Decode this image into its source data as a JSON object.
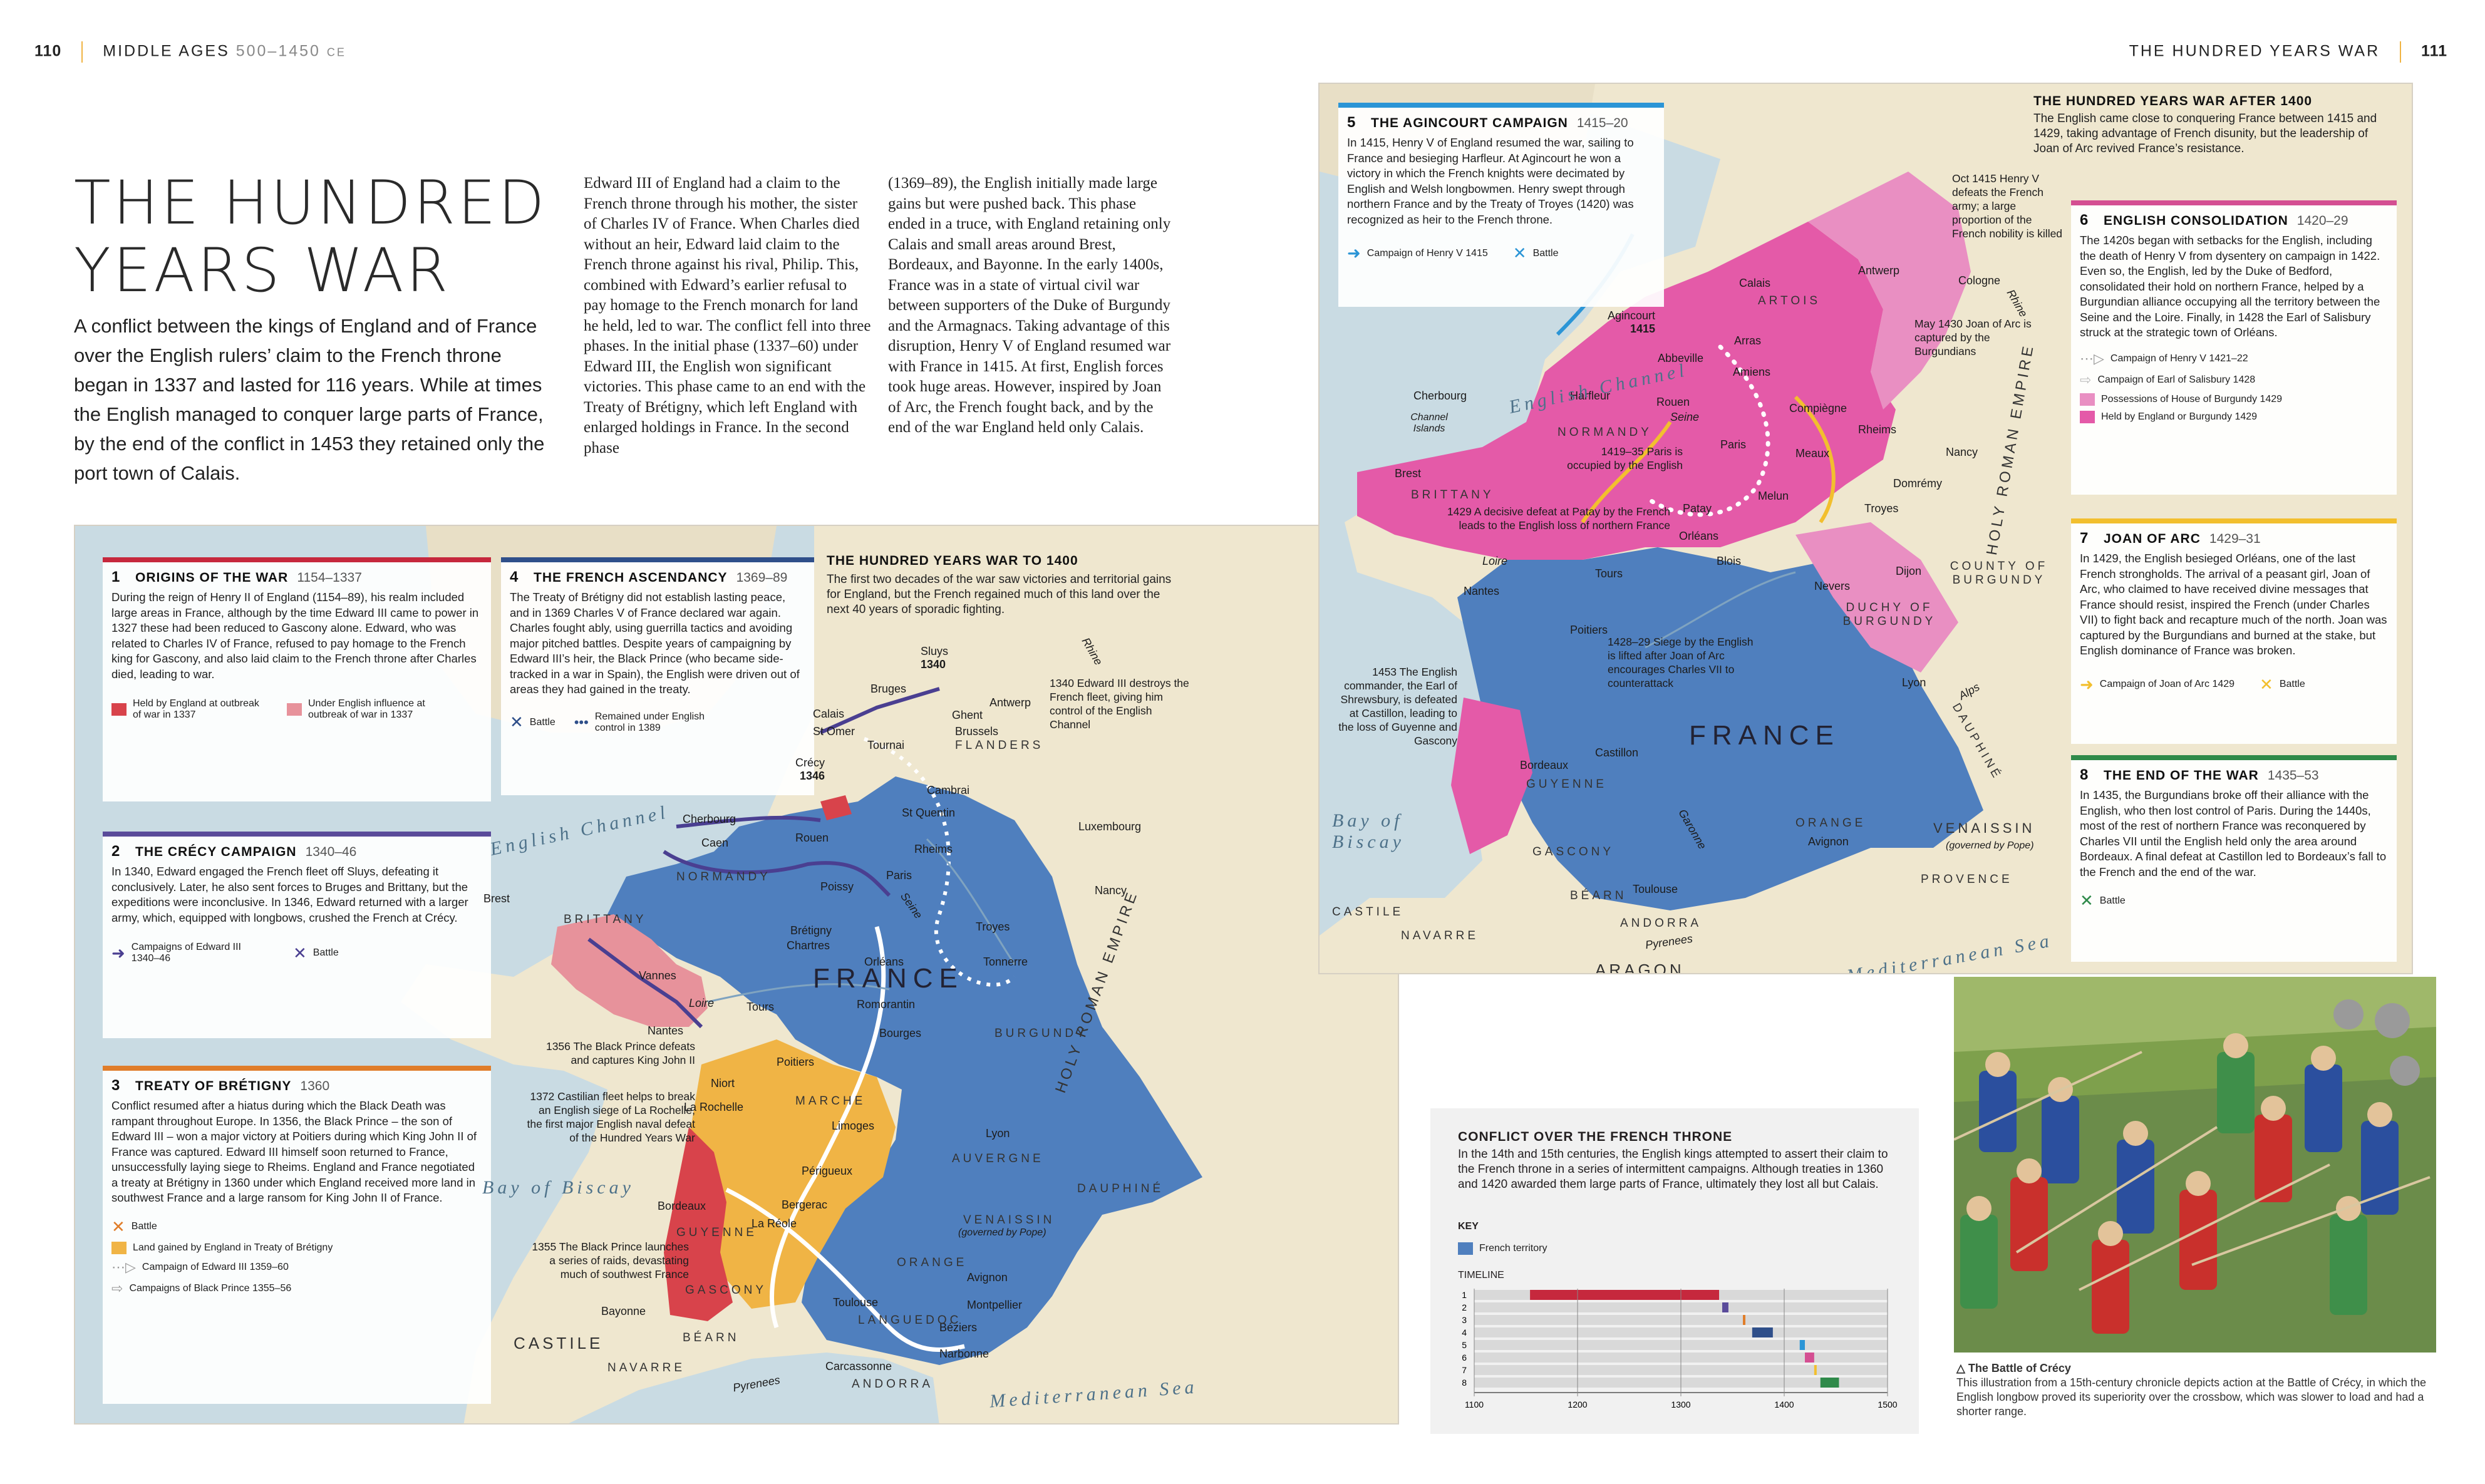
{
  "header": {
    "left_page_number": "110",
    "left_section": "MIDDLE AGES",
    "left_dates": "500–1450",
    "left_era": "CE",
    "right_section": "THE HUNDRED YEARS WAR",
    "right_page_number": "111"
  },
  "title_line1": "THE HUNDRED",
  "title_line2": "YEARS WAR",
  "intro": "A conflict between the kings of England and of France over the English rulers’ claim to the French throne began in 1337 and lasted for 116 years. While at times the English managed to conquer large parts of France, by the end of the conflict in 1453 they retained only the port town of Calais.",
  "body_col1": "Edward III of England had a claim to the French throne through his mother, the sister of Charles IV of France. When Charles died without an heir, Edward laid claim to the French throne against his rival, Philip. This, combined with Edward’s earlier refusal to pay homage to the French monarch for land he held, led to war. The conflict fell into three phases. In the initial phase (1337–60) under Edward III, the English won significant victories. This phase came to an end with the Treaty of Brétigny, which left England with enlarged holdings in France. In the second phase",
  "body_col2": "(1369–89), the English initially made large gains but were pushed back. This phase ended in a truce, with England retaining only Calais and small areas around Brest, Bordeaux, and Bayonne. In the early 1400s, France was in a state of virtual civil war between supporters of the Duke of Burgundy and the Armagnacs. Taking advantage of this disruption, Henry V of England resumed war with France in 1415. At first, English forces took huge areas. However, inspired by Joan of Arc, the French fought back, and by the end of the war England held only Calais.",
  "colors": {
    "england": "#d8434b",
    "english_influence": "#e7929b",
    "france_blue": "#4f7fbe",
    "bretigny_gold": "#f0b445",
    "burgundy_pink": "#e98fc2",
    "held_pink": "#e45aa8",
    "red_bar": "#c6283d",
    "navy_bar": "#2f4f8a",
    "purple_bar": "#5a4b9a",
    "orange_bar": "#e07d2a",
    "blue_bar": "#2b95d6",
    "pink_bar": "#d44f92",
    "yellow_bar": "#f2bf2e",
    "green_bar": "#2f8a4a"
  },
  "map1": {
    "title": "THE HUNDRED YEARS WAR TO 1400",
    "subtitle": "The first two decades of the war saw victories and territorial gains for England, but the French regained much of this land over the next 40 years of sporadic fighting.",
    "box1": {
      "num": "1",
      "head": "ORIGINS OF THE WAR",
      "dates": "1154–1337",
      "text": "During the reign of Henry II of England (1154–89), his realm included large areas in France, although by the time Edward III came to power in 1327 these had been reduced to Gascony alone. Edward, who was related to Charles IV of France, refused to pay homage to the French king for Gascony, and also laid claim to the French throne after Charles died, leading to war.",
      "key1": "Held by England at outbreak of war in 1337",
      "key2": "Under English influence at outbreak of war in 1337"
    },
    "box2": {
      "num": "2",
      "head": "THE CRÉCY CAMPAIGN",
      "dates": "1340–46",
      "text": "In 1340, Edward engaged the French fleet off Sluys, defeating it conclusively. Later, he also sent forces to Bruges and Brittany, but the expeditions were inconclusive. In 1346, Edward returned with a larger army, which, equipped with longbows, crushed the French at Crécy.",
      "key1": "Campaigns of Edward III 1340–46",
      "key2": "Battle"
    },
    "box3": {
      "num": "3",
      "head": "TREATY OF BRÉTIGNY",
      "dates": "1360",
      "text": "Conflict resumed after a hiatus during which the Black Death was rampant throughout Europe. In 1356, the Black Prince – the son of Edward III – won a major victory at Poitiers during which King John II of France was captured. Edward III himself soon returned to France, unsuccessfully laying siege to Rheims. England and France negotiated a treaty at Brétigny in 1360 under which England received more land in southwest France and a large ransom for King John II of France.",
      "key1": "Battle",
      "key2": "Land gained by England in Treaty of Brétigny",
      "key3": "Campaign of Edward III 1359–60",
      "key4": "Campaigns of Black Prince 1355–56"
    },
    "box4": {
      "num": "4",
      "head": "THE FRENCH ASCENDANCY",
      "dates": "1369–89",
      "text": "The Treaty of Brétigny did not establish lasting peace, and in 1369 Charles V of France declared war again. Charles fought ably, using guerrilla tactics and avoiding major pitched battles. Despite years of campaigning by Edward III’s heir, the Black Prince (who became side-tracked in a war in Spain), the English were driven out of areas they had gained in the treaty.",
      "key1": "Battle",
      "key2": "Remained under English control in 1389"
    },
    "notes": {
      "sluys": "Sluys",
      "sluys_year": "1340",
      "n1340": "1340 Edward III destroys the French fleet, giving him control of the English Channel",
      "crecy": "Crécy",
      "crecy_year": "1346",
      "n1356": "1356 The Black Prince defeats and captures King John II",
      "n1372": "1372 Castilian fleet helps to break an English siege of La Rochelle, the first major English naval defeat of the Hundred Years War",
      "n1355": "1355 The Black Prince launches a series of raids, devastating much of southwest France"
    },
    "places": [
      "Bruges",
      "Antwerp",
      "Ghent",
      "Calais",
      "St Omer",
      "Tournai",
      "Brussels",
      "FLANDERS",
      "Cambrai",
      "St Quentin",
      "Luxembourg",
      "Cherbourg",
      "Caen",
      "Rouen",
      "NORMANDY",
      "Poissy",
      "Paris",
      "Rheims",
      "Nancy",
      "Brest",
      "BRITTANY",
      "Vannes",
      "Brétigny",
      "Chartres",
      "Troyes",
      "Orléans",
      "Tonnerre",
      "Nantes",
      "Loire",
      "Tours",
      "Romorantin",
      "Bourges",
      "BURGUNDY",
      "Poitiers",
      "Niort",
      "La Rochelle",
      "MARCHE",
      "Limoges",
      "Lyon",
      "AUVERGNE",
      "Périgueux",
      "Bordeaux",
      "Bergerac",
      "La Réole",
      "GUYENNE",
      "VENAISSIN",
      "(governed by Pope)",
      "DAUPHINÉ",
      "ORANGE",
      "Avignon",
      "Montpellier",
      "GASCONY",
      "Toulouse",
      "Béziers",
      "LANGUEDOC",
      "Narbonne",
      "Bayonne",
      "BÉARN",
      "Carcassonne",
      "CASTILE",
      "NAVARRE",
      "ANDORRA",
      "Rhine",
      "Seine",
      "Pyrenees"
    ],
    "france": "FRANCE",
    "hre": "HOLY ROMAN EMPIRE",
    "channel": "English Channel",
    "biscay": "Bay of Biscay",
    "med": "Mediterranean Sea"
  },
  "map2": {
    "title": "THE HUNDRED YEARS WAR AFTER 1400",
    "subtitle": "The English came close to conquering France between 1415 and 1429, taking advantage of French disunity, but the leadership of Joan of Arc revived France’s resistance.",
    "box5": {
      "num": "5",
      "head": "THE AGINCOURT CAMPAIGN",
      "dates": "1415–20",
      "text": "In 1415, Henry V of England resumed the war, sailing to France and besieging Harfleur. At Agincourt he won a victory in which the French knights were decimated by English and Welsh longbowmen. Henry swept through northern France and by the Treaty of Troyes (1420) was recognized as heir to the French throne.",
      "key1": "Campaign of Henry V 1415",
      "key2": "Battle"
    },
    "box6": {
      "num": "6",
      "head": "ENGLISH CONSOLIDATION",
      "dates": "1420–29",
      "text": "The 1420s began with setbacks for the English, including the death of Henry V from dysentery on campaign in 1422. Even so, the English, led by the Duke of Bedford, consolidated their hold on northern France, helped by a Burgundian alliance occupying all the territory between the Seine and the Loire. Finally, in 1428 the Earl of Salisbury struck at the strategic town of Orléans.",
      "key1": "Campaign of Henry V 1421–22",
      "key2": "Campaign of Earl of Salisbury 1428",
      "key3": "Possessions of House of Burgundy 1429",
      "key4": "Held by England or Burgundy 1429"
    },
    "box7": {
      "num": "7",
      "head": "JOAN OF ARC",
      "dates": "1429–31",
      "text": "In 1429, the English besieged Orléans, one of the last French strongholds. The arrival of a peasant girl, Joan of Arc, who claimed to have received divine messages that France should resist, inspired the French (under Charles VII) to fight back and recapture much of the north. Joan was captured by the Burgundians and burned at the stake, but English dominance of France was broken.",
      "key1": "Campaign of Joan of Arc 1429",
      "key2": "Battle"
    },
    "box8": {
      "num": "8",
      "head": "THE END OF THE WAR",
      "dates": "1435–53",
      "text": "In 1435, the Burgundians broke off their alliance with the English, who then lost control of Paris. During the 1440s, most of the rest of northern France was reconquered by Charles VII until the English held only the area around Bordeaux. A final defeat at Castillon led to Bordeaux’s fall to the French and the end of the war.",
      "key1": "Battle"
    },
    "notes": {
      "oct1415": "Oct 1415 Henry V defeats the French army; a large proportion of the French nobility is killed",
      "may1430": "May 1430 Joan of Arc is captured by the Burgundians",
      "n1419": "1419–35 Paris is occupied by the English",
      "n1429a": "1429 A decisive defeat at Patay by the French leads to the English loss of northern France",
      "n1428": "1428–29 Siege by the English is lifted after Joan of Arc encourages Charles VII to counterattack",
      "n1453": "1453 The English commander, the Earl of Shrewsbury, is defeated at Castillon, leading to the loss of Guyenne and Gascony",
      "agincourt": "Agincourt",
      "agincourt_year": "1415"
    },
    "places": [
      "Antwerp",
      "Calais",
      "Cologne",
      "ARTOIS",
      "Arras",
      "Abbeville",
      "Amiens",
      "Rhine",
      "Cherbourg",
      "Harfleur",
      "Rouen",
      "Channel Islands",
      "Compiègne",
      "Rheims",
      "NORMANDY",
      "Paris",
      "Meaux",
      "Nancy",
      "Brest",
      "Seine",
      "Domrémy",
      "BRITTANY",
      "Melun",
      "Troyes",
      "Patay",
      "Orléans",
      "Blois",
      "Loire",
      "Tours",
      "Nantes",
      "Nevers",
      "Dijon",
      "COUNTY OF BURGUNDY",
      "DUCHY OF BURGUNDY",
      "Poitiers",
      "Lyon",
      "Alps",
      "Bordeaux",
      "Castillon",
      "GUYENNE",
      "DAUPHINÉ",
      "ORANGE",
      "Avignon",
      "VENAISSIN",
      "(governed by Pope)",
      "PROVENCE",
      "GASCONY",
      "Garonne",
      "Toulouse",
      "BÉARN",
      "ANDORRA",
      "CASTILE",
      "NAVARRE",
      "ARAGON",
      "Pyrenees"
    ],
    "france": "FRANCE",
    "hre": "HOLY ROMAN EMPIRE",
    "channel": "English Channel",
    "biscay": "Bay of Biscay",
    "med": "Mediterranean Sea"
  },
  "conflict": {
    "title": "CONFLICT OVER THE FRENCH THRONE",
    "text": "In the 14th and 15th centuries, the English kings attempted to assert their claim to the French throne in a series of intermittent campaigns. Although treaties in 1360 and 1420 awarded them large parts of France, ultimately they lost all but Calais.",
    "key_label": "KEY",
    "key_item": "French territory",
    "timeline_label": "TIMELINE"
  },
  "chart_data": {
    "type": "bar",
    "title": "TIMELINE",
    "categories": [
      "1",
      "2",
      "3",
      "4",
      "5",
      "6",
      "7",
      "8"
    ],
    "series": [
      {
        "name": "",
        "ranges": [
          [
            1154,
            1337
          ],
          [
            1340,
            1346
          ],
          [
            1360,
            1361
          ],
          [
            1369,
            1389
          ],
          [
            1415,
            1420
          ],
          [
            1420,
            1429
          ],
          [
            1429,
            1431
          ],
          [
            1435,
            1453
          ]
        ]
      }
    ],
    "xlim": [
      1100,
      1500
    ],
    "x_ticks": [
      "1100",
      "1200",
      "1300",
      "1400",
      "1500"
    ],
    "bar_colors": [
      "#c6283d",
      "#5a4b9a",
      "#e07d2a",
      "#2f4f8a",
      "#2b95d6",
      "#d44f92",
      "#f2bf2e",
      "#2f8a4a"
    ]
  },
  "photo": {
    "caption_title": "The Battle of Crécy",
    "caption_text": "This illustration from a 15th-century chronicle depicts action at the Battle of Crécy, in which the English longbow proved its superiority over the crossbow, which was slower to load and had a shorter range."
  }
}
